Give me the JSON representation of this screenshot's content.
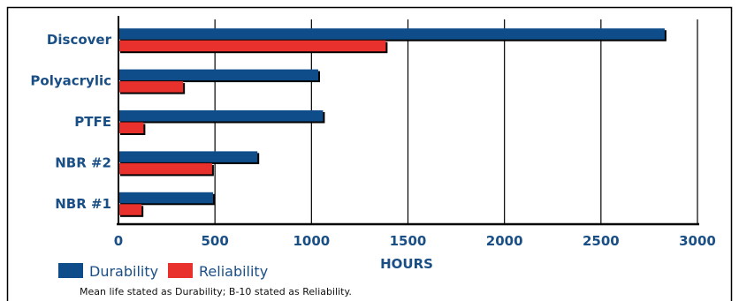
{
  "chart_data": {
    "type": "bar",
    "orientation": "horizontal",
    "categories": [
      "Discover",
      "Polyacrylic",
      "PTFE",
      "NBR #2",
      "NBR #1"
    ],
    "series": [
      {
        "name": "Durability",
        "values": [
          2830,
          1035,
          1060,
          720,
          490
        ]
      },
      {
        "name": "Reliability",
        "values": [
          1385,
          335,
          130,
          485,
          120
        ]
      }
    ],
    "xlabel": "HOURS",
    "ylabel": "",
    "xlim": [
      0,
      3000
    ],
    "xticks": [
      "0",
      "500",
      "1000",
      "1500",
      "2000",
      "2500",
      "3000"
    ],
    "grid": "vertical",
    "legend_position": "bottom-left",
    "footnote": "Mean life stated as Durability; B-10 stated as Reliability.",
    "colors": {
      "durability": "#0f4d8a",
      "reliability": "#e8312c",
      "text": "#1a4f86",
      "axis": "#000000",
      "grid": "#000000"
    }
  }
}
